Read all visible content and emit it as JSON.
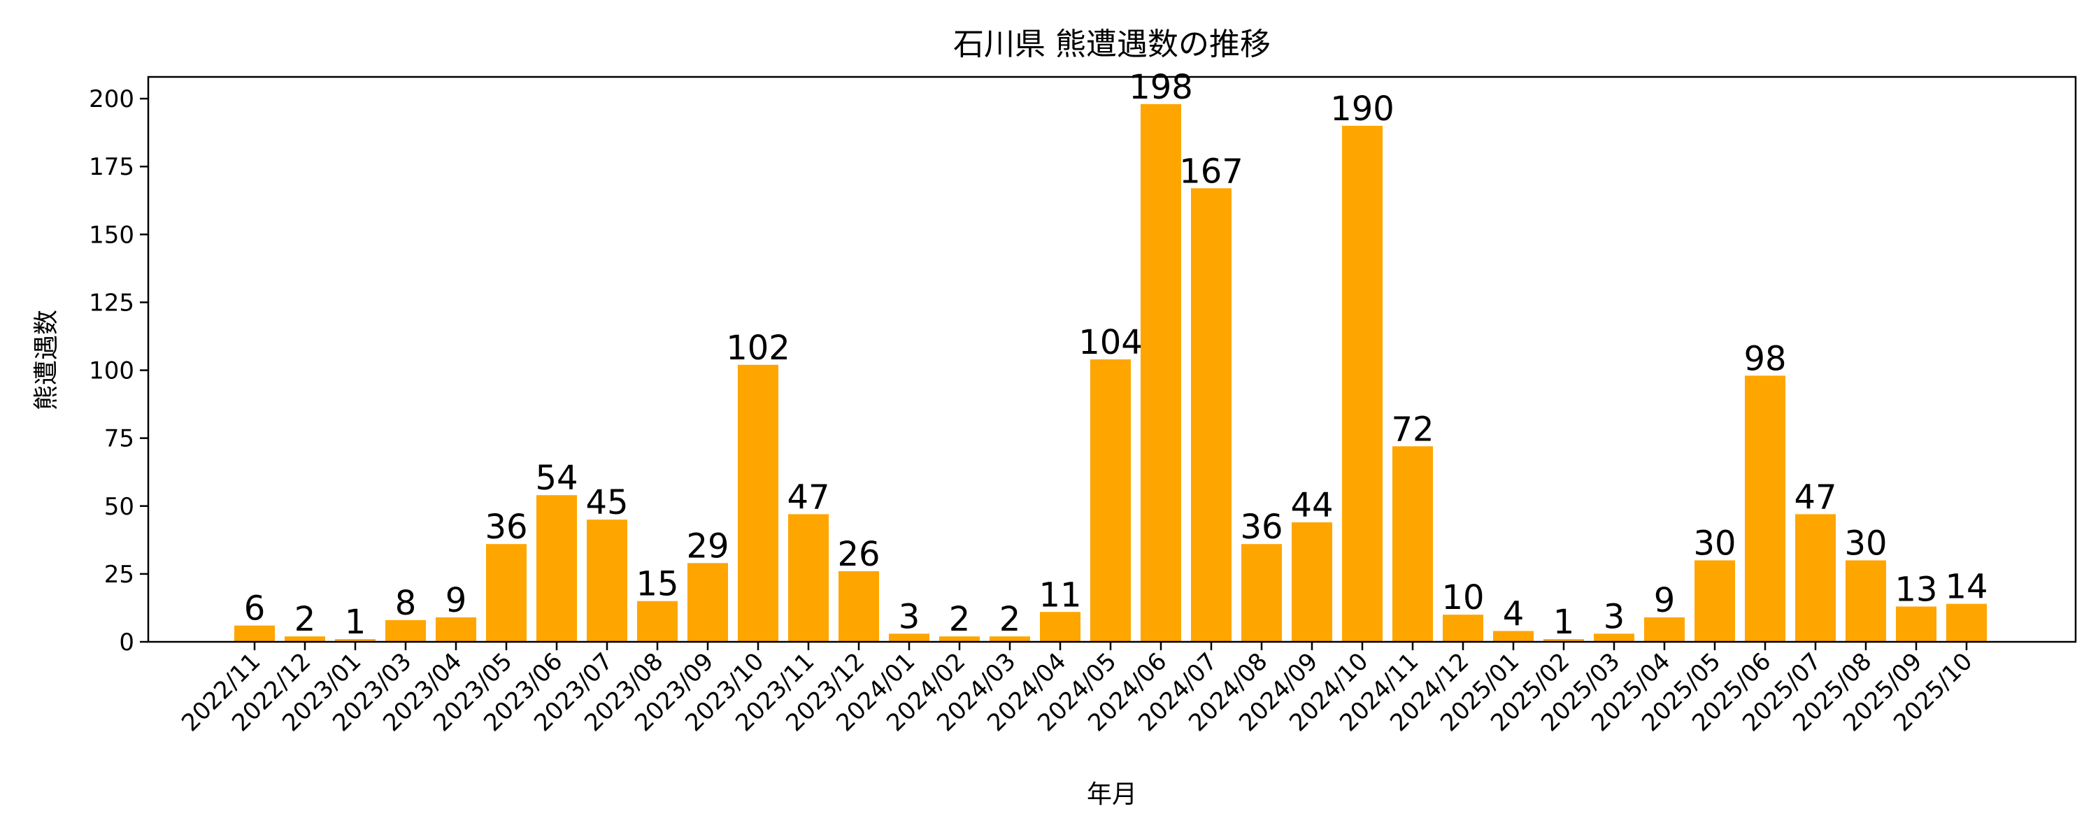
{
  "chart_data": {
    "type": "bar",
    "title": "石川県 熊遭遇数の推移",
    "xlabel": "年月",
    "ylabel": "熊遭遇数",
    "ylim": [
      0,
      208
    ],
    "yticks": [
      0,
      25,
      50,
      75,
      100,
      125,
      150,
      175,
      200
    ],
    "bar_color": "#FFA500",
    "grid": false,
    "legend": "none",
    "categories": [
      "2022/11",
      "2022/12",
      "2023/01",
      "2023/03",
      "2023/04",
      "2023/05",
      "2023/06",
      "2023/07",
      "2023/08",
      "2023/09",
      "2023/10",
      "2023/11",
      "2023/12",
      "2024/01",
      "2024/02",
      "2024/03",
      "2024/04",
      "2024/05",
      "2024/06",
      "2024/07",
      "2024/08",
      "2024/09",
      "2024/10",
      "2024/11",
      "2024/12",
      "2025/01",
      "2025/02",
      "2025/03",
      "2025/04",
      "2025/05",
      "2025/06",
      "2025/07",
      "2025/08",
      "2025/09",
      "2025/10"
    ],
    "values": [
      6,
      2,
      1,
      8,
      9,
      36,
      54,
      45,
      15,
      29,
      102,
      47,
      26,
      3,
      2,
      2,
      11,
      104,
      198,
      167,
      36,
      44,
      190,
      72,
      10,
      4,
      1,
      3,
      9,
      30,
      98,
      47,
      30,
      13,
      14
    ]
  }
}
